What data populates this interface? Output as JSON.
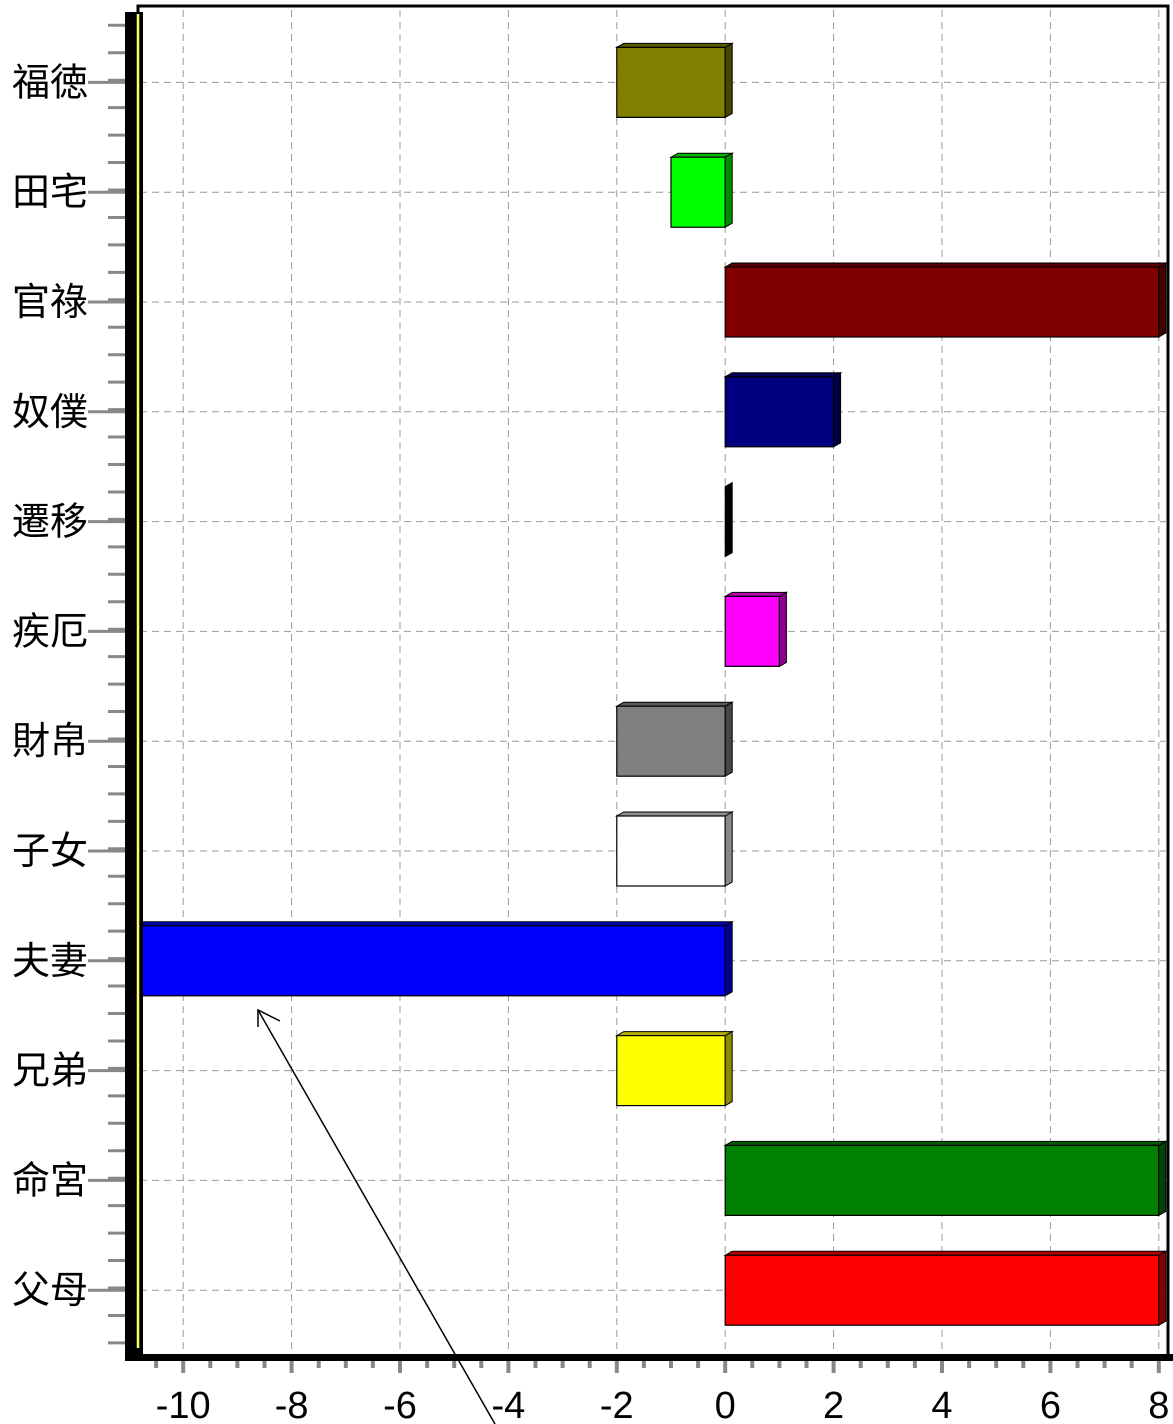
{
  "chart_data": {
    "type": "bar",
    "orientation": "horizontal",
    "categories": [
      "福徳",
      "田宅",
      "官祿",
      "奴僕",
      "遷移",
      "疾厄",
      "財帛",
      "子女",
      "夫妻",
      "兄弟",
      "命宮",
      "父母"
    ],
    "values": [
      -2,
      -1,
      8,
      2,
      0,
      1,
      -2,
      -2,
      -11,
      -2,
      8,
      8
    ],
    "colors": [
      "#808000",
      "#00ff00",
      "#800000",
      "#000080",
      "#000000",
      "#ff00ff",
      "#808080",
      "#ffffff",
      "#0000ff",
      "#ffff00",
      "#008000",
      "#ff0000"
    ],
    "xlim": [
      -11,
      8
    ],
    "xticks": [
      -10,
      -8,
      -6,
      -4,
      -2,
      0,
      2,
      4,
      6,
      8
    ],
    "xtick_labels": [
      "-10",
      "-8",
      "-6",
      "-4",
      "-2",
      "0",
      "2",
      "4",
      "6",
      "8"
    ],
    "grid": true,
    "legend": "none",
    "title": "",
    "xlabel": "",
    "ylabel": ""
  }
}
